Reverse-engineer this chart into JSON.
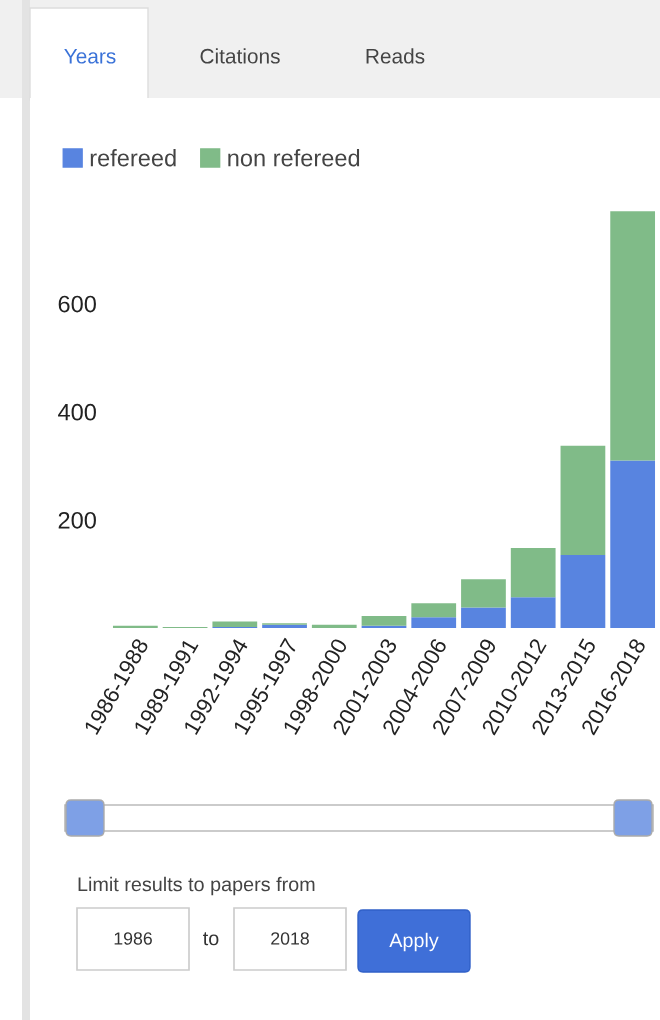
{
  "chart_data": {
    "type": "bar",
    "stacked": true,
    "categories": [
      "1986-1988",
      "1989-1991",
      "1992-1994",
      "1995-1997",
      "1998-2000",
      "2001-2003",
      "2004-2006",
      "2007-2009",
      "2010-2012",
      "2013-2015",
      "2016-2018"
    ],
    "series": [
      {
        "name": "refereed",
        "color": "#5884e0",
        "values": [
          0,
          0,
          2,
          6,
          0,
          4,
          20,
          38,
          57,
          135,
          310
        ]
      },
      {
        "name": "non refereed",
        "color": "#80bb88",
        "values": [
          4,
          2,
          10,
          3,
          6,
          18,
          26,
          52,
          91,
          202,
          461
        ]
      }
    ],
    "ylim": [
      0,
      775
    ],
    "yticks": [
      200,
      400,
      600
    ],
    "grid": false,
    "legend": "top left",
    "annotations": [
      "Years",
      "Citations",
      "Reads",
      "Limit results to papers from",
      "1986",
      "to",
      "2018",
      "Apply"
    ]
  }
}
